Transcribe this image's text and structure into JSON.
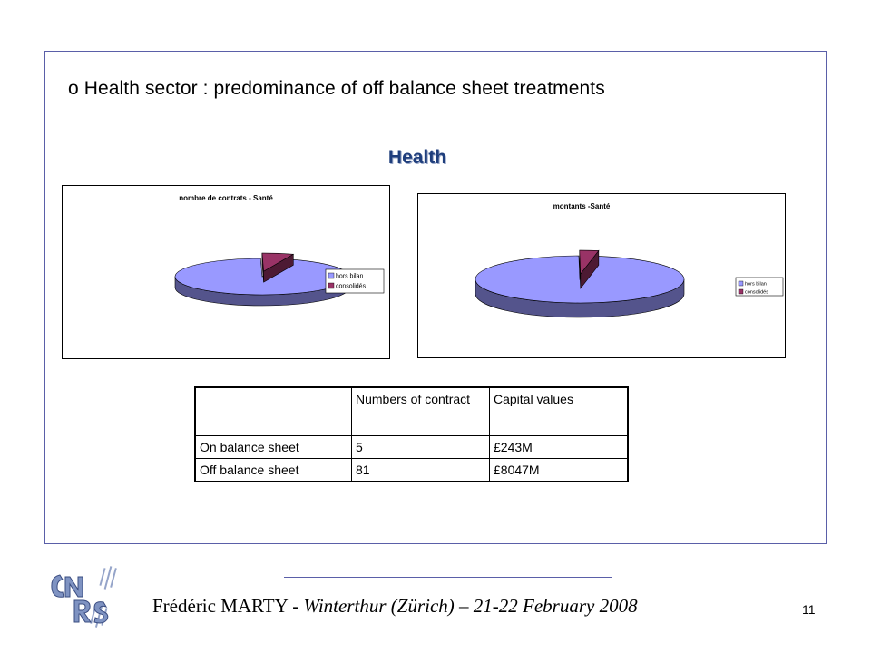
{
  "slide": {
    "bullet_marker": "o",
    "bullet_text": "Health sector : predominance of off balance sheet treatments",
    "section_title": "Health"
  },
  "chart_data": [
    {
      "type": "pie",
      "title": "nombre de contrats - Santé",
      "categories": [
        "hors bilan",
        "consolidés"
      ],
      "values": [
        81,
        5
      ],
      "colors": [
        "#9999ff",
        "#993366"
      ],
      "legend": "right",
      "style": "3d-exploded"
    },
    {
      "type": "pie",
      "title": "montants -Santé",
      "categories": [
        "hors bilan",
        "consolidés"
      ],
      "values": [
        8047,
        243
      ],
      "colors": [
        "#9999ff",
        "#993366"
      ],
      "legend": "right",
      "style": "3d-exploded"
    }
  ],
  "table": {
    "header": [
      "",
      "Numbers of contract",
      "Capital values"
    ],
    "rows": [
      [
        "On balance sheet",
        "5",
        "£243M"
      ],
      [
        "Off balance sheet",
        "81",
        "£8047M"
      ]
    ]
  },
  "footer": {
    "author": "Frédéric MARTY",
    "dash": " - ",
    "venue_date": "Winterthur (Zürich) – 21-22 February 2008",
    "page_number": "11"
  }
}
